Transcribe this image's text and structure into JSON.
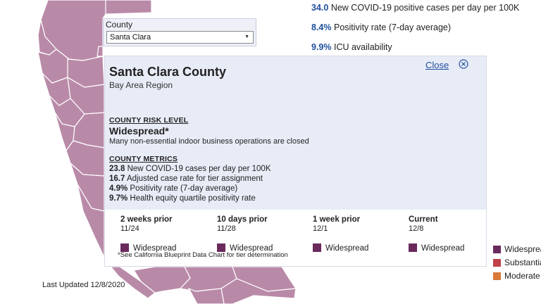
{
  "county_selector": {
    "label": "County",
    "selected": "Santa Clara"
  },
  "state_metrics": [
    {
      "value": "34.0",
      "text": "New COVID-19 positive cases per day per 100K"
    },
    {
      "value": "8.4%",
      "text": "Positivity rate (7-day average)"
    },
    {
      "value": "9.9%",
      "text": "ICU availability"
    }
  ],
  "popup": {
    "county_name": "Santa Clara County",
    "region": "Bay Area Region",
    "close_label": "Close",
    "risk_level_heading": "COUNTY RISK LEVEL",
    "risk_tier": "Widespread*",
    "risk_description": "Many non-essential indoor business operations are closed",
    "metrics_heading": "COUNTY METRICS",
    "metrics": [
      {
        "value": "23.8",
        "text": "New COVID-19 cases per day per 100K"
      },
      {
        "value": "16.7",
        "text": "Adjusted case rate for tier assignment"
      },
      {
        "value": "4.9%",
        "text": "Positivity rate (7-day average)"
      },
      {
        "value": "9.7%",
        "text": "Health equity quartile positivity rate"
      }
    ],
    "history": [
      {
        "period": "2 weeks prior",
        "date": "11/24",
        "tier": "Widespread"
      },
      {
        "period": "10 days prior",
        "date": "11/28",
        "tier": "Widespread"
      },
      {
        "period": "1 week prior",
        "date": "12/1",
        "tier": "Widespread"
      },
      {
        "period": "Current",
        "date": "12/8",
        "tier": "Widespread"
      }
    ],
    "footnote": "*See California Blueprint Data Chart for tier determination"
  },
  "last_updated": "Last Updated 12/8/2020",
  "legend": [
    {
      "label": "Widespread",
      "color": "#6b2a5c"
    },
    {
      "label": "Substantial",
      "color": "#c0404a"
    },
    {
      "label": "Moderate",
      "color": "#d97a3a"
    }
  ],
  "colors": {
    "widespread": "#6b2a5c",
    "map_fill": "#b98aa8",
    "map_stroke": "#ffffff",
    "accent_blue": "#1f4e9c",
    "panel_bg": "#e8ecf7"
  },
  "icons": {
    "close": "circle-x-icon",
    "dropdown": "caret-down-icon"
  }
}
